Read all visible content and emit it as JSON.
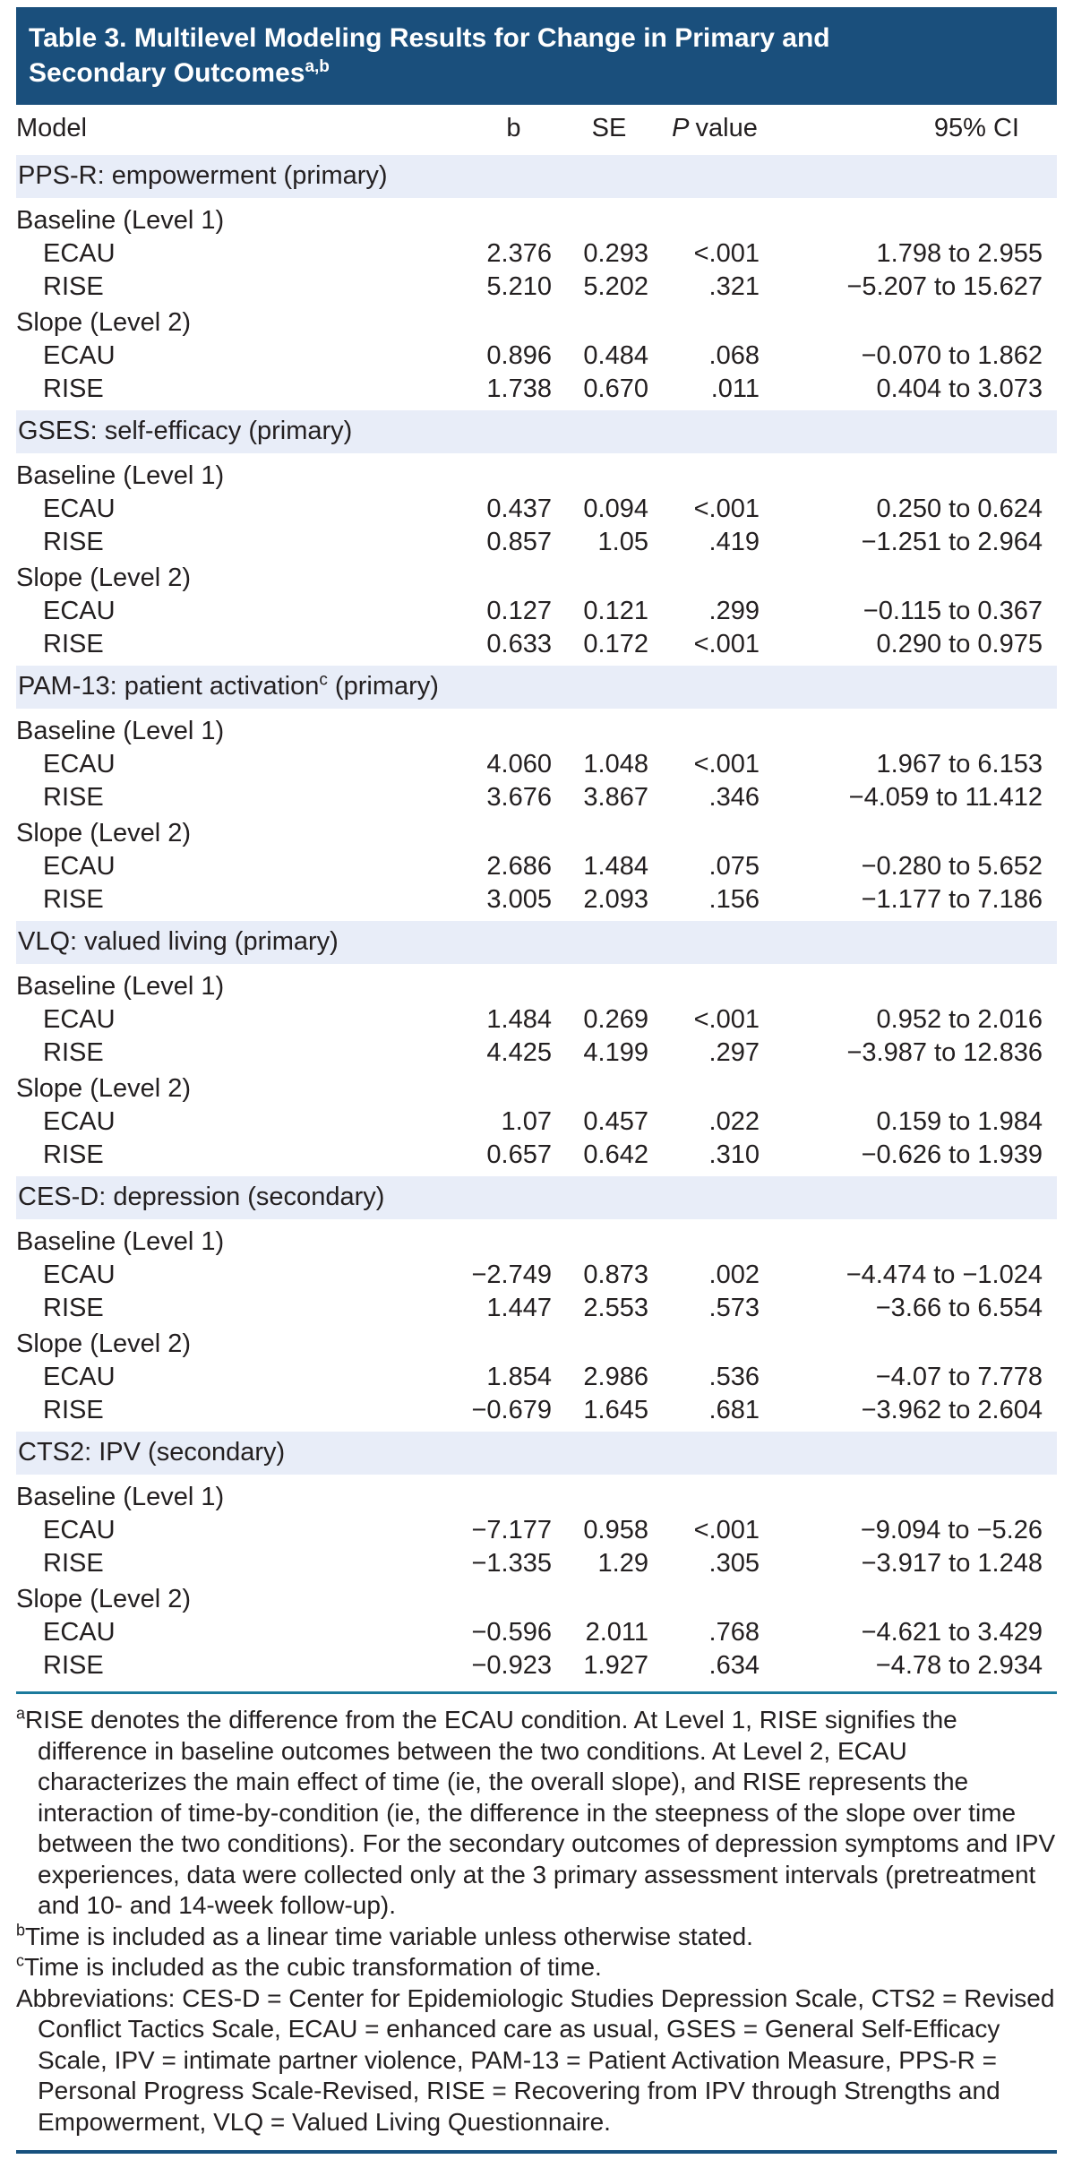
{
  "theme": {
    "title_bar_bg": "#1a4f7c",
    "section_band_bg": "#e8edf8",
    "text_color": "#231f20",
    "header_rule_color": "#262626",
    "footnote_rule_color": "#1c7a9c",
    "bottom_rule_color": "#17517e"
  },
  "title": {
    "line1": "Table 3. Multilevel Modeling Results for Change in Primary and",
    "line2": "Secondary Outcomes",
    "sup": "a,b"
  },
  "table": {
    "headers": {
      "model": "Model",
      "b": "b",
      "se": "SE",
      "p_italic": "P",
      "p_word": "value",
      "ci": "95% CI"
    },
    "sections": [
      {
        "label_pre": "PPS-R: empowerment",
        "sup": "",
        "label_post": " (primary)",
        "groups": [
          {
            "label": "Baseline (Level 1)",
            "rows": [
              {
                "model": "ECAU",
                "b": "2.376",
                "se": "0.293",
                "p": "<.001",
                "ci": "1.798 to 2.955"
              },
              {
                "model": "RISE",
                "b": "5.210",
                "se": "5.202",
                "p": ".321",
                "ci": "−5.207 to 15.627"
              }
            ]
          },
          {
            "label": "Slope (Level 2)",
            "rows": [
              {
                "model": "ECAU",
                "b": "0.896",
                "se": "0.484",
                "p": ".068",
                "ci": "−0.070 to 1.862"
              },
              {
                "model": "RISE",
                "b": "1.738",
                "se": "0.670",
                "p": ".011",
                "ci": "0.404 to 3.073"
              }
            ]
          }
        ]
      },
      {
        "label_pre": "GSES: self-efficacy",
        "sup": "",
        "label_post": " (primary)",
        "groups": [
          {
            "label": "Baseline (Level 1)",
            "rows": [
              {
                "model": "ECAU",
                "b": "0.437",
                "se": "0.094",
                "p": "<.001",
                "ci": "0.250 to 0.624"
              },
              {
                "model": "RISE",
                "b": "0.857",
                "se": "1.05",
                "p": ".419",
                "ci": "−1.251 to 2.964"
              }
            ]
          },
          {
            "label": "Slope (Level 2)",
            "rows": [
              {
                "model": "ECAU",
                "b": "0.127",
                "se": "0.121",
                "p": ".299",
                "ci": "−0.115 to 0.367"
              },
              {
                "model": "RISE",
                "b": "0.633",
                "se": "0.172",
                "p": "<.001",
                "ci": "0.290 to 0.975"
              }
            ]
          }
        ]
      },
      {
        "label_pre": "PAM-13: patient activation",
        "sup": "c",
        "label_post": " (primary)",
        "groups": [
          {
            "label": "Baseline (Level 1)",
            "rows": [
              {
                "model": "ECAU",
                "b": "4.060",
                "se": "1.048",
                "p": "<.001",
                "ci": "1.967 to 6.153"
              },
              {
                "model": "RISE",
                "b": "3.676",
                "se": "3.867",
                "p": ".346",
                "ci": "−4.059 to 11.412"
              }
            ]
          },
          {
            "label": "Slope (Level 2)",
            "rows": [
              {
                "model": "ECAU",
                "b": "2.686",
                "se": "1.484",
                "p": ".075",
                "ci": "−0.280 to 5.652"
              },
              {
                "model": "RISE",
                "b": "3.005",
                "se": "2.093",
                "p": ".156",
                "ci": "−1.177 to 7.186"
              }
            ]
          }
        ]
      },
      {
        "label_pre": "VLQ: valued living",
        "sup": "",
        "label_post": " (primary)",
        "groups": [
          {
            "label": "Baseline (Level 1)",
            "rows": [
              {
                "model": "ECAU",
                "b": "1.484",
                "se": "0.269",
                "p": "<.001",
                "ci": "0.952 to 2.016"
              },
              {
                "model": "RISE",
                "b": "4.425",
                "se": "4.199",
                "p": ".297",
                "ci": "−3.987 to 12.836"
              }
            ]
          },
          {
            "label": "Slope (Level 2)",
            "rows": [
              {
                "model": "ECAU",
                "b": "1.07",
                "se": "0.457",
                "p": ".022",
                "ci": "0.159 to 1.984"
              },
              {
                "model": "RISE",
                "b": "0.657",
                "se": "0.642",
                "p": ".310",
                "ci": "−0.626 to 1.939"
              }
            ]
          }
        ]
      },
      {
        "label_pre": "CES-D: depression",
        "sup": "",
        "label_post": " (secondary)",
        "groups": [
          {
            "label": "Baseline (Level 1)",
            "rows": [
              {
                "model": "ECAU",
                "b": "−2.749",
                "se": "0.873",
                "p": ".002",
                "ci": "−4.474 to −1.024"
              },
              {
                "model": "RISE",
                "b": "1.447",
                "se": "2.553",
                "p": ".573",
                "ci": "−3.66 to 6.554"
              }
            ]
          },
          {
            "label": "Slope (Level 2)",
            "rows": [
              {
                "model": "ECAU",
                "b": "1.854",
                "se": "2.986",
                "p": ".536",
                "ci": "−4.07 to 7.778"
              },
              {
                "model": "RISE",
                "b": "−0.679",
                "se": "1.645",
                "p": ".681",
                "ci": "−3.962 to 2.604"
              }
            ]
          }
        ]
      },
      {
        "label_pre": "CTS2: IPV",
        "sup": "",
        "label_post": " (secondary)",
        "groups": [
          {
            "label": "Baseline (Level 1)",
            "rows": [
              {
                "model": "ECAU",
                "b": "−7.177",
                "se": "0.958",
                "p": "<.001",
                "ci": "−9.094 to −5.26"
              },
              {
                "model": "RISE",
                "b": "−1.335",
                "se": "1.29",
                "p": ".305",
                "ci": "−3.917 to 1.248"
              }
            ]
          },
          {
            "label": "Slope (Level 2)",
            "rows": [
              {
                "model": "ECAU",
                "b": "−0.596",
                "se": "2.011",
                "p": ".768",
                "ci": "−4.621 to 3.429"
              },
              {
                "model": "RISE",
                "b": "−0.923",
                "se": "1.927",
                "p": ".634",
                "ci": "−4.78 to 2.934"
              }
            ]
          }
        ]
      }
    ]
  },
  "footnotes": {
    "a_marker": "a",
    "a_text": "RISE denotes the difference from the ECAU condition. At Level 1, RISE signifies the difference in baseline outcomes between the two conditions. At Level 2, ECAU characterizes the main effect of time (ie, the overall slope), and RISE represents the interaction of time-by-condition (ie, the difference in the steepness of the slope over time between the two conditions). For the secondary outcomes of depression symptoms and IPV experiences, data were collected only at the 3 primary assessment intervals (pretreatment and 10- and 14-week follow-up).",
    "b_marker": "b",
    "b_text": "Time is included as a linear time variable unless otherwise stated.",
    "c_marker": "c",
    "c_text": "Time is included as the cubic transformation of time.",
    "abbreviations": "Abbreviations: CES-D = Center for Epidemiologic Studies Depression Scale, CTS2 = Revised Conflict Tactics Scale, ECAU = enhanced care as usual, GSES = General Self-Efficacy Scale, IPV = intimate partner violence, PAM-13 = Patient Activation Measure, PPS-R = Personal Progress Scale-Revised, RISE = Recovering from IPV through Strengths and Empowerment, VLQ = Valued Living Questionnaire."
  }
}
